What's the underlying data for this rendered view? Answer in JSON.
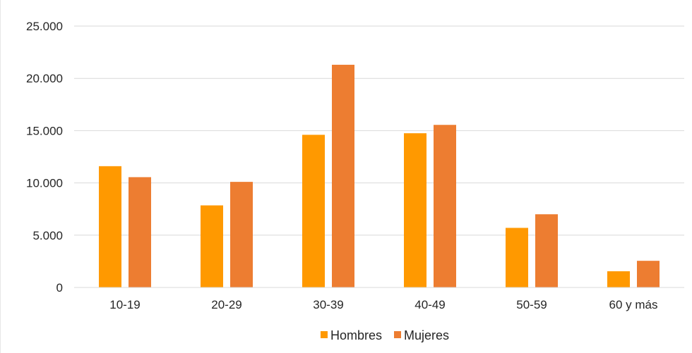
{
  "chart_data": {
    "type": "bar",
    "categories": [
      "10-19",
      "20-29",
      "30-39",
      "40-49",
      "50-59",
      "60 y más"
    ],
    "series": [
      {
        "name": "Hombres",
        "values": [
          11600,
          7850,
          14600,
          14750,
          5700,
          1550
        ],
        "color": "#FF9900"
      },
      {
        "name": "Mujeres",
        "values": [
          10550,
          10100,
          21300,
          15550,
          7000,
          2550
        ],
        "color": "#ED7D31"
      }
    ],
    "ylim": [
      0,
      25000
    ],
    "yticks": [
      0,
      5000,
      10000,
      15000,
      20000,
      25000
    ],
    "ytick_labels": [
      "0",
      "5.000",
      "10.000",
      "15.000",
      "20.000",
      "25.000"
    ],
    "grid": true,
    "gridline_color": "#d9d9d9",
    "legend_position": "bottom",
    "title": "",
    "xlabel": "",
    "ylabel": ""
  }
}
